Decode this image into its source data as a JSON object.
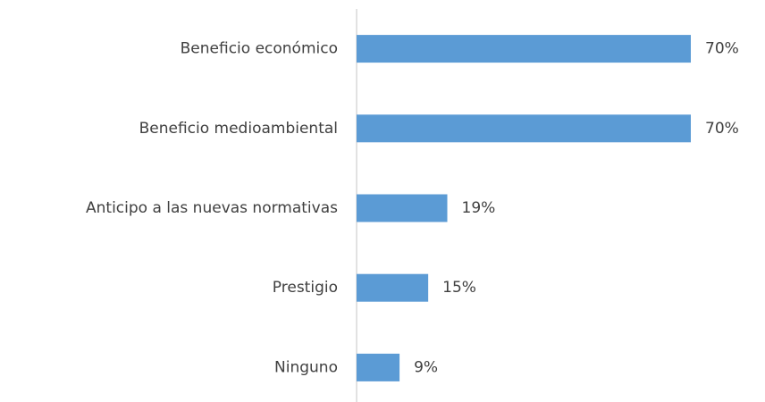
{
  "chart_data": {
    "type": "bar",
    "categories": [
      "Beneficio económico",
      "Beneficio medioambiental",
      "Anticipo a las nuevas normativas",
      "Prestigio",
      "Ninguno"
    ],
    "values": [
      70,
      70,
      19,
      15,
      9
    ],
    "value_labels": [
      "70%",
      "70%",
      "19%",
      "15%",
      "9%"
    ],
    "color": "#5b9bd5"
  }
}
